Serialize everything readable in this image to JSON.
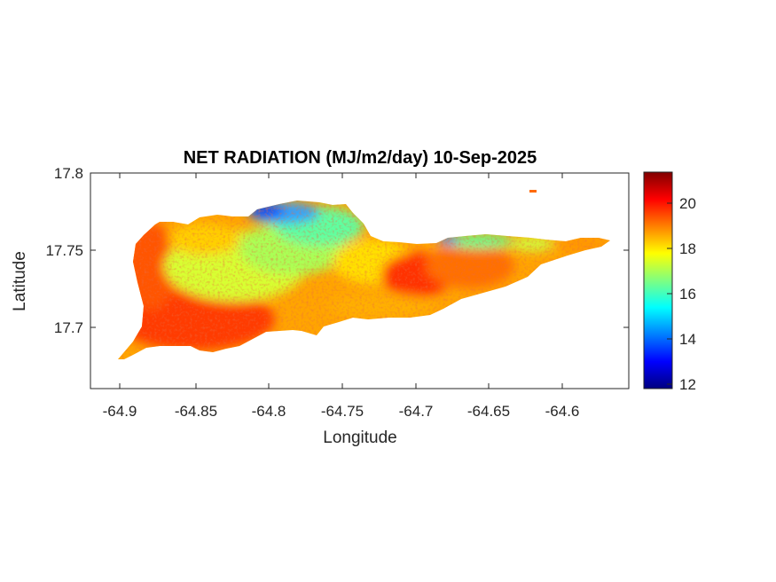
{
  "chart_data": {
    "type": "heatmap",
    "title": "NET RADIATION (MJ/m2/day) 10-Sep-2025",
    "xlabel": "Longitude",
    "ylabel": "Latitude",
    "xlim": [
      -64.92,
      -64.54
    ],
    "ylim": [
      17.657,
      17.8
    ],
    "x_ticks": [
      -64.9,
      -64.85,
      -64.8,
      -64.75,
      -64.7,
      -64.65,
      -64.6
    ],
    "x_tick_labels": [
      "-64.9",
      "-64.85",
      "-64.8",
      "-64.75",
      "-64.7",
      "-64.65",
      "-64.6"
    ],
    "y_ticks": [
      17.7,
      17.75,
      17.8
    ],
    "y_tick_labels": [
      "17.7",
      "17.75",
      "17.8"
    ],
    "colorbar": {
      "colormap": "jet",
      "range": [
        11.8,
        21.4
      ],
      "ticks": [
        12,
        14,
        16,
        18,
        20
      ],
      "tick_labels": [
        "12",
        "14",
        "16",
        "18",
        "20"
      ]
    },
    "regions": [
      {
        "region": "west coast",
        "approx_value": 19.5
      },
      {
        "region": "southwest lowlands",
        "approx_value": 20
      },
      {
        "region": "central northern hills",
        "approx_value": 17
      },
      {
        "region": "north coast (around -64.8)",
        "approx_value": 13.5
      },
      {
        "region": "north coast (around -64.67)",
        "approx_value": 15
      },
      {
        "region": "south-central coast",
        "approx_value": 19
      },
      {
        "region": "east end",
        "approx_value": 18.5
      }
    ],
    "grid": false,
    "legend": "none"
  }
}
